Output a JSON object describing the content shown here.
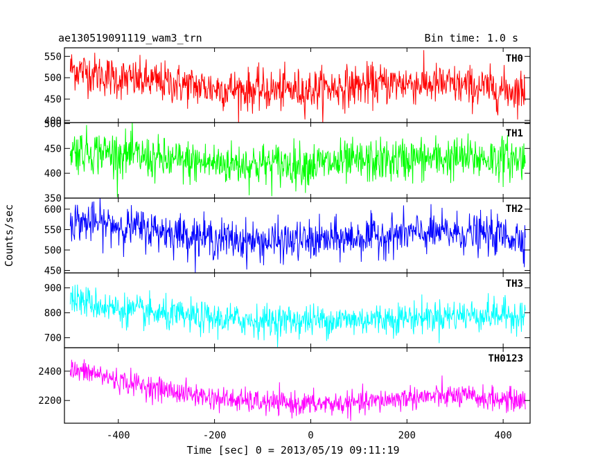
{
  "header": {
    "title": "ae130519091119_wam3_trn",
    "bin_time": "Bin time: 1.0 s"
  },
  "chart_data": {
    "type": "line",
    "xlabel": "Time [sec] 0 = 2013/05/19 09:11:19",
    "ylabel": "Counts/sec",
    "xlim": [
      -512,
      456
    ],
    "x_ticks": [
      -400,
      -200,
      0,
      200,
      400
    ],
    "x_range_data": [
      -500,
      446
    ],
    "grid": false,
    "legend": "none",
    "panels": [
      {
        "name": "TH0",
        "color": "#ff0000",
        "ylim": [
          395,
          570
        ],
        "y_ticks": [
          400,
          450,
          500,
          550
        ],
        "trend": [
          [
            -500,
            522
          ],
          [
            -450,
            510
          ],
          [
            -400,
            498
          ],
          [
            -300,
            488
          ],
          [
            -200,
            475
          ],
          [
            -100,
            470
          ],
          [
            0,
            472
          ],
          [
            100,
            482
          ],
          [
            200,
            488
          ],
          [
            300,
            482
          ],
          [
            400,
            472
          ],
          [
            446,
            470
          ]
        ],
        "noise": 24
      },
      {
        "name": "TH1",
        "color": "#00ff00",
        "ylim": [
          350,
          502
        ],
        "y_ticks": [
          350,
          400,
          450,
          500
        ],
        "trend": [
          [
            -500,
            447
          ],
          [
            -400,
            440
          ],
          [
            -300,
            425
          ],
          [
            -200,
            420
          ],
          [
            -100,
            418
          ],
          [
            0,
            418
          ],
          [
            100,
            422
          ],
          [
            200,
            428
          ],
          [
            300,
            430
          ],
          [
            400,
            430
          ],
          [
            446,
            428
          ]
        ],
        "noise": 22
      },
      {
        "name": "TH2",
        "color": "#0000ff",
        "ylim": [
          444,
          627
        ],
        "y_ticks": [
          450,
          500,
          550,
          600
        ],
        "trend": [
          [
            -500,
            572
          ],
          [
            -400,
            560
          ],
          [
            -300,
            545
          ],
          [
            -200,
            528
          ],
          [
            -100,
            520
          ],
          [
            0,
            522
          ],
          [
            100,
            530
          ],
          [
            200,
            540
          ],
          [
            300,
            542
          ],
          [
            400,
            535
          ],
          [
            446,
            530
          ]
        ],
        "noise": 24
      },
      {
        "name": "TH3",
        "color": "#00ffff",
        "ylim": [
          660,
          960
        ],
        "y_ticks": [
          700,
          800,
          900
        ],
        "trend": [
          [
            -500,
            860
          ],
          [
            -450,
            835
          ],
          [
            -400,
            815
          ],
          [
            -300,
            790
          ],
          [
            -200,
            775
          ],
          [
            -100,
            768
          ],
          [
            0,
            770
          ],
          [
            100,
            772
          ],
          [
            200,
            780
          ],
          [
            300,
            790
          ],
          [
            400,
            792
          ],
          [
            446,
            790
          ]
        ],
        "noise": 32
      },
      {
        "name": "TH0123",
        "color": "#ff00ff",
        "ylim": [
          2045,
          2560
        ],
        "y_ticks": [
          2200,
          2400
        ],
        "trend": [
          [
            -500,
            2405
          ],
          [
            -450,
            2385
          ],
          [
            -400,
            2335
          ],
          [
            -300,
            2270
          ],
          [
            -200,
            2215
          ],
          [
            -100,
            2185
          ],
          [
            0,
            2175
          ],
          [
            100,
            2180
          ],
          [
            200,
            2220
          ],
          [
            300,
            2230
          ],
          [
            400,
            2205
          ],
          [
            446,
            2200
          ]
        ],
        "noise": 40
      }
    ]
  }
}
